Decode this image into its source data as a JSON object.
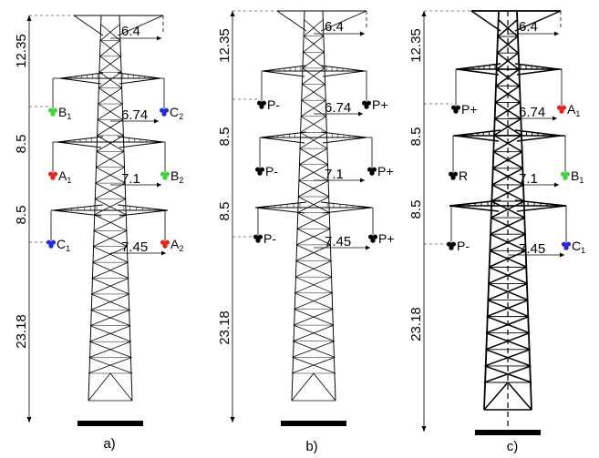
{
  "colors": {
    "red": "#e8211d",
    "green": "#37d637",
    "blue": "#2029e0",
    "black": "#000000"
  },
  "panels": [
    {
      "caption": "a)",
      "vertical_dims": [
        "12.35",
        "8.5",
        "8.5",
        "23.18"
      ],
      "horizontal_dims": [
        "6.4",
        "6.74",
        "7.1",
        "7.45"
      ],
      "conductors": [
        {
          "main": "B",
          "sub": "1",
          "color": "green",
          "side": "left"
        },
        {
          "main": "C",
          "sub": "2",
          "color": "blue",
          "side": "right"
        },
        {
          "main": "A",
          "sub": "1",
          "color": "red",
          "side": "left"
        },
        {
          "main": "B",
          "sub": "2",
          "color": "green",
          "side": "right"
        },
        {
          "main": "C",
          "sub": "1",
          "color": "blue",
          "side": "left"
        },
        {
          "main": "A",
          "sub": "2",
          "color": "red",
          "side": "right"
        }
      ]
    },
    {
      "caption": "b)",
      "vertical_dims": [
        "12.35",
        "8.5",
        "8.5",
        "23.18"
      ],
      "horizontal_dims": [
        "6.4",
        "6.74",
        "7.1",
        "7.45"
      ],
      "conductors": [
        {
          "main": "P-",
          "sub": "",
          "color": "black",
          "side": "left"
        },
        {
          "main": "P+",
          "sub": "",
          "color": "black",
          "side": "right"
        },
        {
          "main": "P-",
          "sub": "",
          "color": "black",
          "side": "left"
        },
        {
          "main": "P+",
          "sub": "",
          "color": "black",
          "side": "right"
        },
        {
          "main": "P-",
          "sub": "",
          "color": "black",
          "side": "left"
        },
        {
          "main": "P+",
          "sub": "",
          "color": "black",
          "side": "right"
        }
      ]
    },
    {
      "caption": "c)",
      "vertical_dims": [
        "12.35",
        "8.5",
        "8.5",
        "23.18"
      ],
      "horizontal_dims": [
        "6.4",
        "6.74",
        "7.1",
        "7.45"
      ],
      "conductors": [
        {
          "main": "P+",
          "sub": "",
          "color": "black",
          "side": "left"
        },
        {
          "main": "A",
          "sub": "1",
          "color": "red",
          "side": "right"
        },
        {
          "main": "R",
          "sub": "",
          "color": "black",
          "side": "left"
        },
        {
          "main": "B",
          "sub": "1",
          "color": "green",
          "side": "right"
        },
        {
          "main": "P-",
          "sub": "",
          "color": "black",
          "side": "left"
        },
        {
          "main": "C",
          "sub": "1",
          "color": "blue",
          "side": "right"
        }
      ]
    }
  ]
}
